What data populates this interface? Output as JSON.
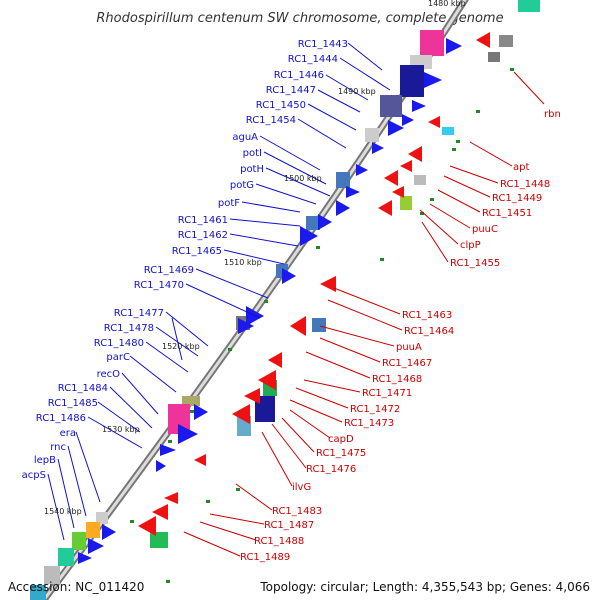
{
  "title": "Rhodospirillum centenum SW chromosome, complete genome",
  "footer": {
    "accession": "Accession: NC_011420",
    "topology": "Topology: circular; Length: 4,355,543 bp; Genes: 4,066"
  },
  "kbp_ticks": [
    "1480 kbp",
    "1490 kbp",
    "1500 kbp",
    "1510 kbp",
    "1520 kbp",
    "1530 kbp",
    "1540 kbp"
  ],
  "colors": {
    "forward": "#1a1aee",
    "reverse": "#ee1111",
    "backbone": "#999999"
  },
  "left_labels": [
    "RC1_1443",
    "RC1_1444",
    "RC1_1446",
    "RC1_1447",
    "RC1_1450",
    "RC1_1454",
    "aguA",
    "potI",
    "potH",
    "potG",
    "potF",
    "RC1_1461",
    "RC1_1462",
    "RC1_1465",
    "RC1_1469",
    "RC1_1470",
    "RC1_1477",
    "RC1_1478",
    "RC1_1480",
    "parC",
    "recO",
    "RC1_1484",
    "RC1_1485",
    "RC1_1486",
    "era",
    "rnc",
    "lepB",
    "acpS"
  ],
  "right_labels": [
    "rbn",
    "apt",
    "RC1_1448",
    "RC1_1449",
    "RC1_1451",
    "puuC",
    "clpP",
    "RC1_1455",
    "RC1_1463",
    "RC1_1464",
    "puuA",
    "RC1_1467",
    "RC1_1468",
    "RC1_1471",
    "RC1_1472",
    "RC1_1473",
    "capD",
    "RC1_1475",
    "RC1_1476",
    "ilvG",
    "RC1_1483",
    "RC1_1487",
    "RC1_1488",
    "RC1_1489"
  ]
}
